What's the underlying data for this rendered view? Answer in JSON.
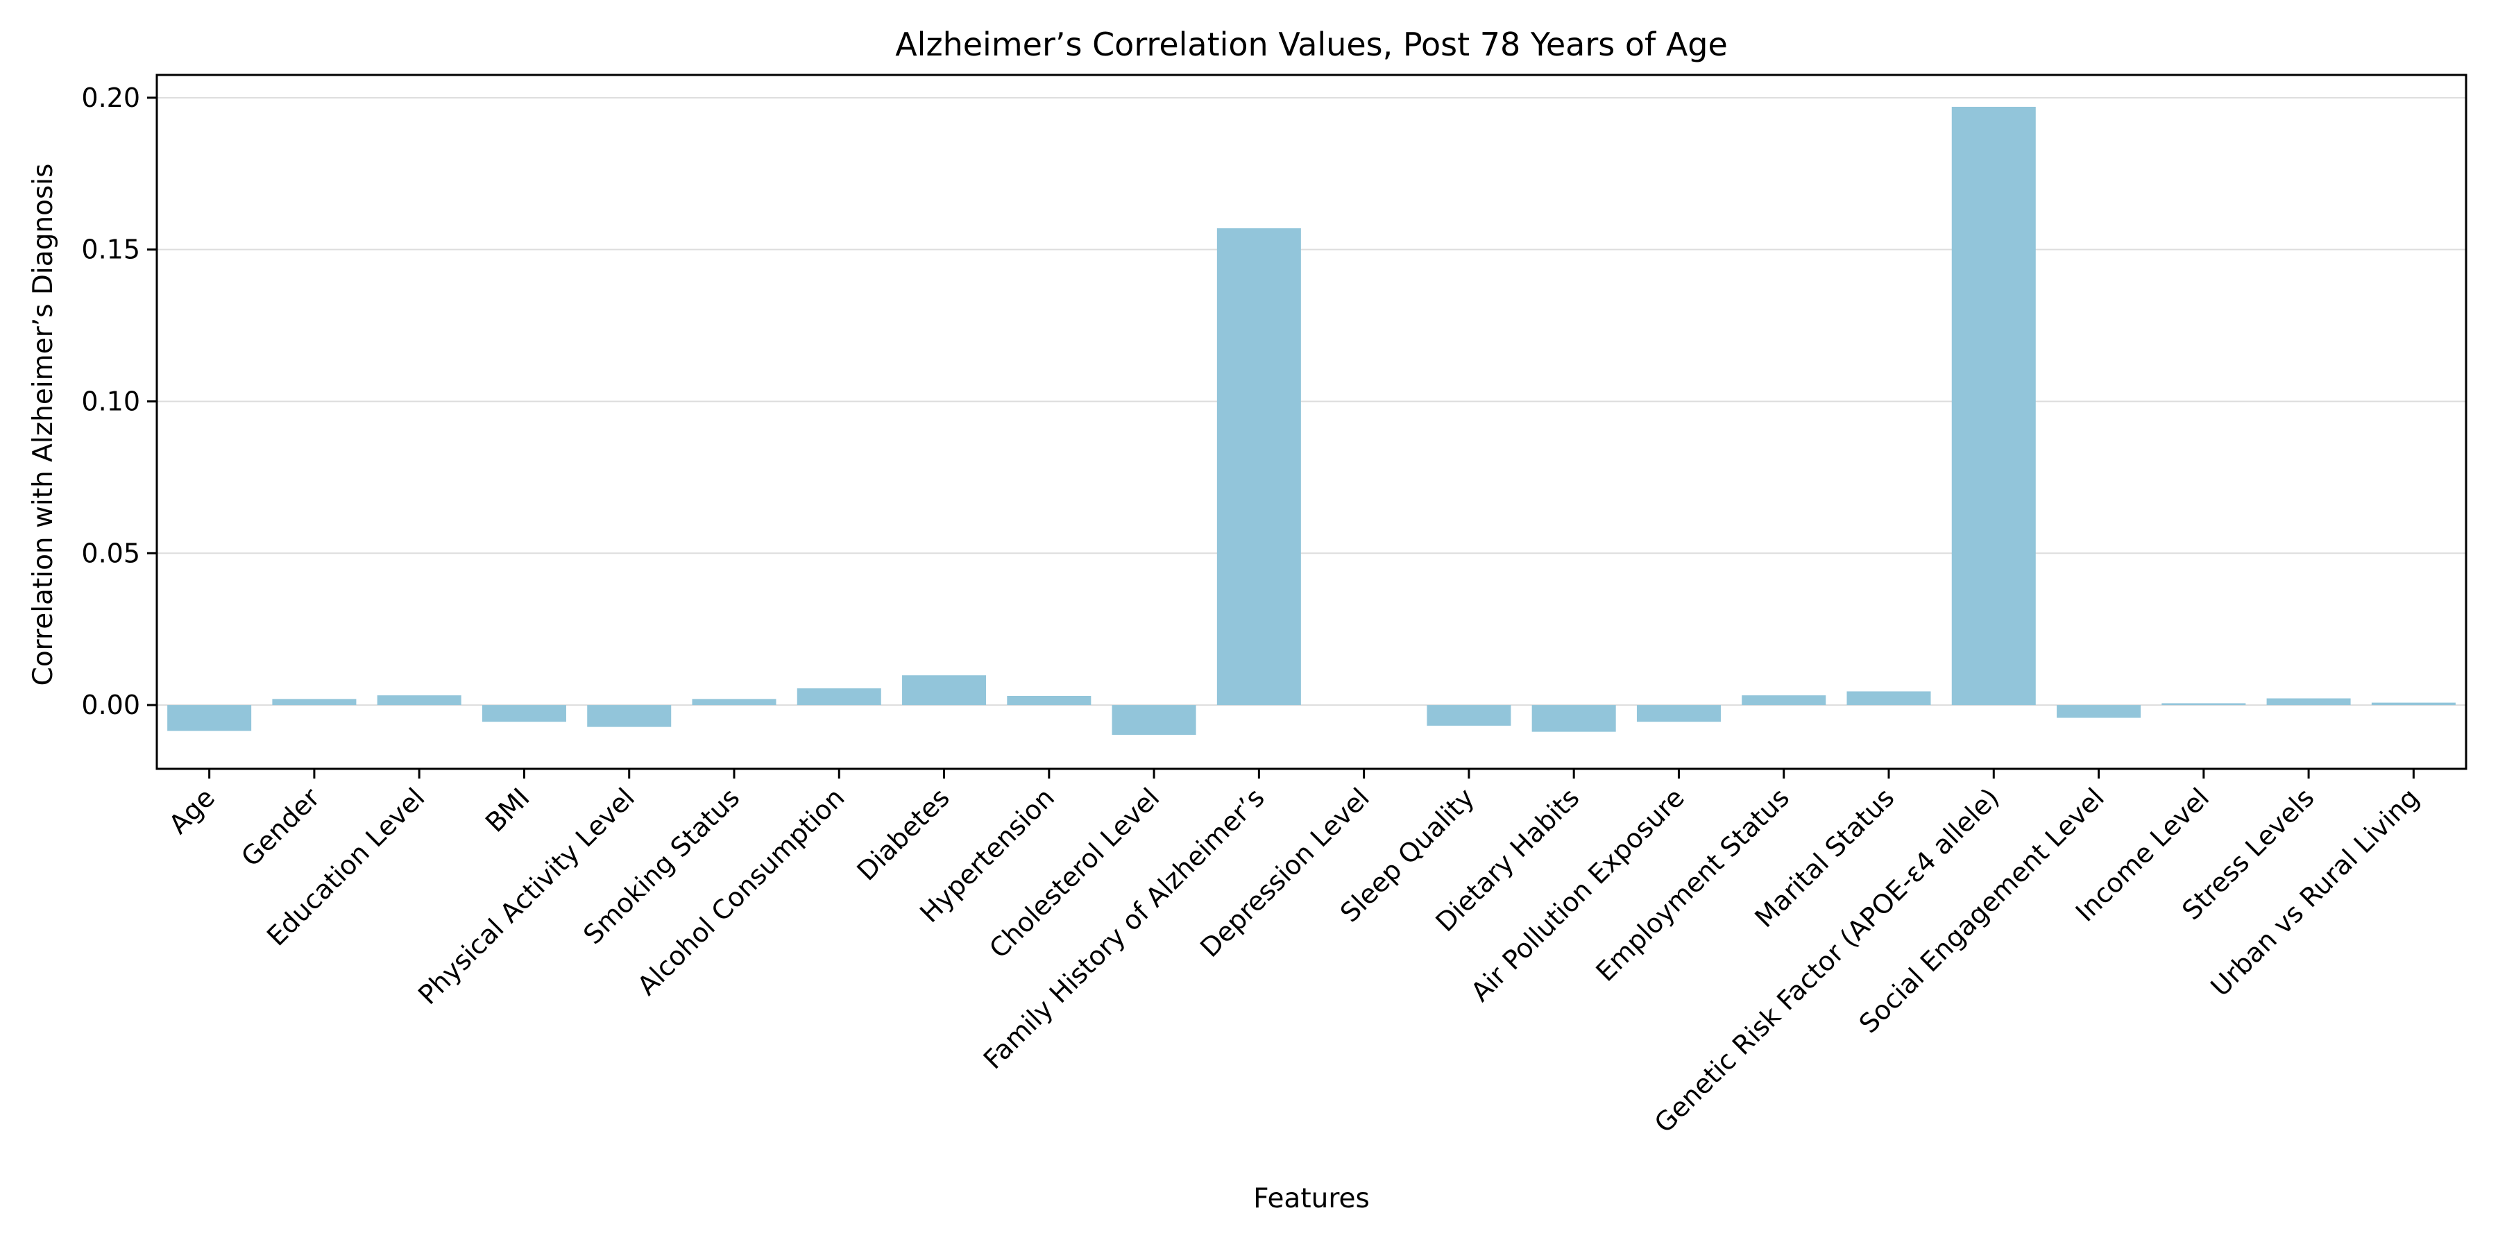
{
  "chart_data": {
    "type": "bar",
    "title": "Alzheimer’s Correlation Values, Post 78 Years of Age",
    "xlabel": "Features",
    "ylabel": "Correlation with Alzheimer’s Diagnosis",
    "ylim": [
      -0.021,
      0.2075
    ],
    "yticks": [
      0.0,
      0.05,
      0.1,
      0.15,
      0.2
    ],
    "ytick_labels": [
      "0.00",
      "0.05",
      "0.10",
      "0.15",
      "0.20"
    ],
    "grid": "horizontal",
    "bar_color": "#92c5da",
    "categories": [
      "Age",
      "Gender",
      "Education Level",
      "BMI",
      "Physical Activity Level",
      "Smoking Status",
      "Alcohol Consumption",
      "Diabetes",
      "Hypertension",
      "Cholesterol Level",
      "Family History of Alzheimer’s",
      "Depression Level",
      "Sleep Quality",
      "Dietary Habits",
      "Air Pollution Exposure",
      "Employment Status",
      "Marital Status",
      "Genetic Risk Factor (APOE-ε4 allele)",
      "Social Engagement Level",
      "Income Level",
      "Stress Levels",
      "Urban vs Rural Living"
    ],
    "values": [
      -0.0085,
      0.002,
      0.0032,
      -0.0055,
      -0.0072,
      0.002,
      0.0055,
      0.0098,
      0.003,
      -0.0098,
      0.157,
      0.0,
      -0.0068,
      -0.0088,
      -0.0055,
      0.0032,
      0.0045,
      0.197,
      -0.0042,
      0.0006,
      0.0022,
      0.0008
    ]
  }
}
